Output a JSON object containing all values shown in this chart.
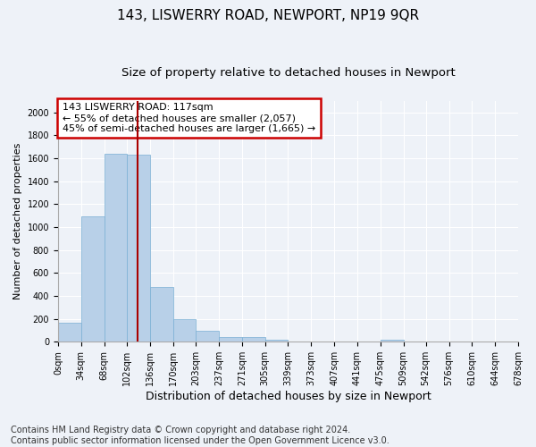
{
  "title": "143, LISWERRY ROAD, NEWPORT, NP19 9QR",
  "subtitle": "Size of property relative to detached houses in Newport",
  "xlabel": "Distribution of detached houses by size in Newport",
  "ylabel": "Number of detached properties",
  "footer_line1": "Contains HM Land Registry data © Crown copyright and database right 2024.",
  "footer_line2": "Contains public sector information licensed under the Open Government Licence v3.0.",
  "annotation_line1": "143 LISWERRY ROAD: 117sqm",
  "annotation_line2": "← 55% of detached houses are smaller (2,057)",
  "annotation_line3": "45% of semi-detached houses are larger (1,665) →",
  "bar_color": "#b8d0e8",
  "bar_edge_color": "#7aafd4",
  "vline_color": "#aa0000",
  "vline_x": 117,
  "bar_heights": [
    165,
    1090,
    1635,
    1630,
    480,
    200,
    100,
    45,
    38,
    22,
    0,
    0,
    0,
    0,
    22,
    0,
    0,
    0,
    0,
    0
  ],
  "bin_edges": [
    0,
    34,
    68,
    102,
    136,
    170,
    203,
    237,
    271,
    305,
    339,
    373,
    407,
    441,
    475,
    509,
    542,
    576,
    610,
    644,
    678
  ],
  "xtick_labels": [
    "0sqm",
    "34sqm",
    "68sqm",
    "102sqm",
    "136sqm",
    "170sqm",
    "203sqm",
    "237sqm",
    "271sqm",
    "305sqm",
    "339sqm",
    "373sqm",
    "407sqm",
    "441sqm",
    "475sqm",
    "509sqm",
    "542sqm",
    "576sqm",
    "610sqm",
    "644sqm",
    "678sqm"
  ],
  "ylim": [
    0,
    2100
  ],
  "yticks": [
    0,
    200,
    400,
    600,
    800,
    1000,
    1200,
    1400,
    1600,
    1800,
    2000
  ],
  "background_color": "#eef2f8",
  "grid_color": "#ffffff",
  "title_fontsize": 11,
  "subtitle_fontsize": 9.5,
  "xlabel_fontsize": 9,
  "ylabel_fontsize": 8,
  "tick_fontsize": 7,
  "annotation_fontsize": 8,
  "footer_fontsize": 7
}
